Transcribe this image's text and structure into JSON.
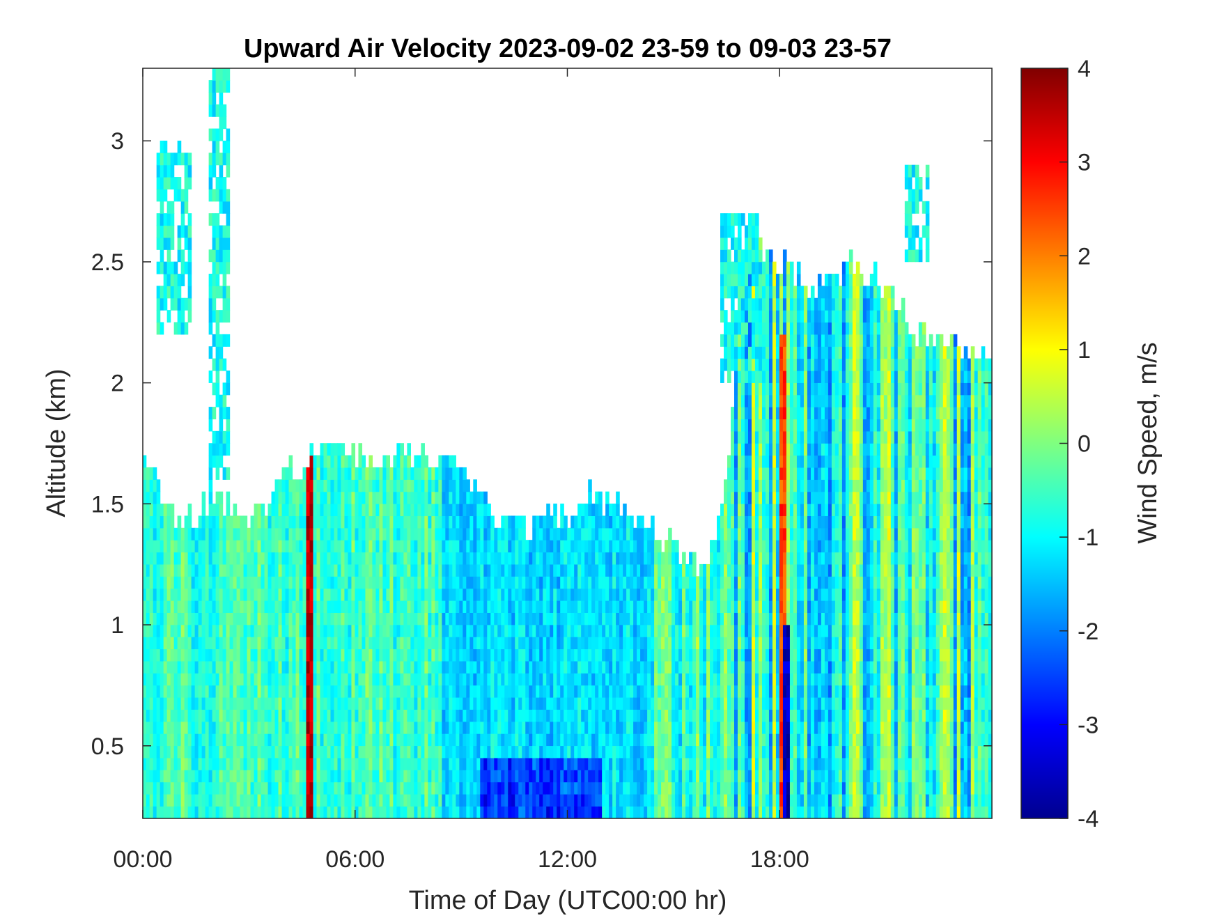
{
  "chart_data": {
    "type": "heatmap",
    "title": "Upward Air Velocity 2023-09-02 23-59 to 09-03 23-57",
    "xlabel": "Time of Day (UTC00:00 hr)",
    "ylabel": "Altitude (km)",
    "colorbar_label": "Wind Speed, m/s",
    "x_ticks": [
      "00:00",
      "06:00",
      "12:00",
      "18:00"
    ],
    "x_tick_hours": [
      0,
      6,
      12,
      18
    ],
    "x_range_hours": [
      0,
      24
    ],
    "y_ticks": [
      "0.5",
      "1",
      "1.5",
      "2",
      "2.5",
      "3"
    ],
    "y_tick_values": [
      0.5,
      1,
      1.5,
      2,
      2.5,
      3
    ],
    "ylim": [
      0.2,
      3.3
    ],
    "colorbar_ticks": [
      "-4",
      "-3",
      "-2",
      "-1",
      "0",
      "1",
      "2",
      "3",
      "4"
    ],
    "colorbar_values": [
      -4,
      -3,
      -2,
      -1,
      0,
      1,
      2,
      3,
      4
    ],
    "clim": [
      -4,
      4
    ],
    "colormap": "jet",
    "grid": false,
    "cloud_top_km": [
      [
        0,
        1.7
      ],
      [
        0.5,
        1.55
      ],
      [
        1,
        1.4
      ],
      [
        1.5,
        1.45
      ],
      [
        2,
        1.55
      ],
      [
        2.5,
        1.45
      ],
      [
        3,
        1.45
      ],
      [
        3.5,
        1.5
      ],
      [
        4,
        1.7
      ],
      [
        4.5,
        1.6
      ],
      [
        5,
        1.75
      ],
      [
        5.5,
        1.8
      ],
      [
        6,
        1.7
      ],
      [
        7,
        1.72
      ],
      [
        8,
        1.7
      ],
      [
        9,
        1.7
      ],
      [
        9.5,
        1.55
      ],
      [
        10,
        1.45
      ],
      [
        11,
        1.4
      ],
      [
        12,
        1.45
      ],
      [
        12.5,
        1.55
      ],
      [
        13,
        1.5
      ],
      [
        13.5,
        1.5
      ],
      [
        14,
        1.45
      ],
      [
        15,
        1.35
      ],
      [
        15.5,
        1.25
      ],
      [
        16,
        1.25
      ],
      [
        16.5,
        1.6
      ],
      [
        17,
        2.6
      ],
      [
        18,
        2.5
      ],
      [
        19,
        2.4
      ],
      [
        20,
        2.5
      ],
      [
        21,
        2.4
      ],
      [
        22,
        2.2
      ],
      [
        23,
        2.15
      ],
      [
        24,
        2.1
      ]
    ],
    "upper_cloud_patches": [
      {
        "hours": [
          0.4,
          1.4
        ],
        "km": [
          2.2,
          3.0
        ]
      },
      {
        "hours": [
          1.9,
          2.5
        ],
        "km": [
          1.6,
          3.3
        ]
      },
      {
        "hours": [
          16.3,
          17.5
        ],
        "km": [
          2.0,
          2.7
        ]
      },
      {
        "hours": [
          21.5,
          22.2
        ],
        "km": [
          2.5,
          2.9
        ]
      }
    ],
    "strong_features": [
      {
        "hour": 4.7,
        "km": [
          0.2,
          1.7
        ],
        "value": 3.5
      },
      {
        "hour": 18.1,
        "km": [
          0.2,
          2.2
        ],
        "value": 2.5
      },
      {
        "hour": 18.2,
        "km": [
          0.2,
          1.0
        ],
        "value": -3.5
      },
      {
        "hour": 11,
        "km": [
          0.2,
          0.4
        ],
        "value": -2.5
      }
    ]
  }
}
